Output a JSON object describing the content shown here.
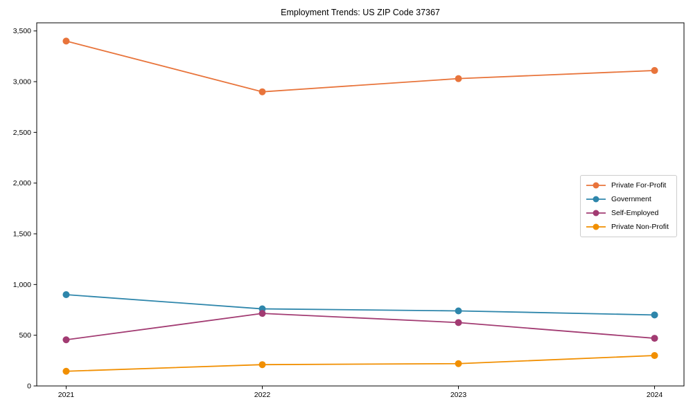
{
  "figure": {
    "background_color": "#ffffff",
    "frame_color": "#000000",
    "tick_label_color": "#000000",
    "legend_border_color": "#cccccc"
  },
  "chart_data": {
    "type": "line",
    "title": "Employment Trends: US ZIP Code 37367",
    "xlabel": "",
    "ylabel": "",
    "grid": false,
    "x": [
      2021,
      2022,
      2023,
      2024
    ],
    "x_tick_labels": [
      "2021",
      "2022",
      "2023",
      "2024"
    ],
    "xlim": [
      2020.85,
      2024.15
    ],
    "ylim": [
      0,
      3580
    ],
    "yticks": [
      0,
      500,
      1000,
      1500,
      2000,
      2500,
      3000,
      3500
    ],
    "ytick_labels": [
      "0",
      "500",
      "1,000",
      "1,500",
      "2,000",
      "2,500",
      "3,000",
      "3,500"
    ],
    "legend_position": "center right",
    "series": [
      {
        "name": "Private For-Profit",
        "color": "#E8743B",
        "values": [
          3400,
          2900,
          3030,
          3110
        ]
      },
      {
        "name": "Government",
        "color": "#2E86AB",
        "values": [
          900,
          760,
          740,
          700
        ]
      },
      {
        "name": "Self-Employed",
        "color": "#A23B72",
        "values": [
          455,
          715,
          625,
          470
        ]
      },
      {
        "name": "Private Non-Profit",
        "color": "#F18F01",
        "values": [
          145,
          210,
          220,
          300
        ]
      }
    ]
  }
}
